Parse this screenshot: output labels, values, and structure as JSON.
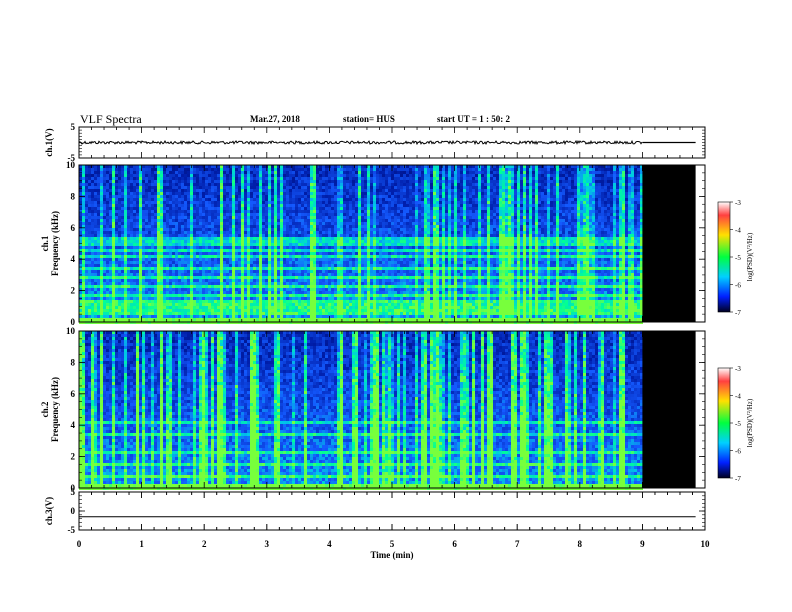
{
  "header": {
    "title": "VLF Spectra",
    "date": "Mar.27, 2018",
    "station": "station= HUS",
    "start": "start  UT  =   1 : 50: 2"
  },
  "chart_data": [
    {
      "type": "line",
      "panel": "ch1-waveform",
      "ylabel": "ch.1(V)",
      "ylim": [
        -5,
        5
      ],
      "yticks": [
        "5",
        "-5"
      ],
      "xlim": [
        0,
        10
      ],
      "data_until_min": 9.0,
      "series": [
        {
          "x": [
            0,
            9.0,
            9.85
          ],
          "y": [
            0.0,
            0.0,
            0.0
          ]
        }
      ]
    },
    {
      "type": "heatmap",
      "panel": "ch1-spectrogram",
      "ylabel": "ch.1\nFrequency (kHz)",
      "ylim": [
        0,
        10
      ],
      "yticks": [
        "0",
        "2",
        "4",
        "6",
        "8",
        "10"
      ],
      "xlim": [
        0,
        10
      ],
      "data_until_min": 9.0,
      "no_data_until_min": 9.85,
      "colorbar": {
        "label": "log(PSD)(V²/Hz)",
        "range": [
          -7,
          -3
        ],
        "ticks": [
          "-3",
          "-4",
          "-5",
          "-6",
          "-7"
        ]
      },
      "bands_khz": [
        0.6,
        0.9,
        1.3,
        1.8,
        2.3,
        3.0,
        3.5,
        4.2,
        4.6,
        5.1,
        5.3
      ]
    },
    {
      "type": "heatmap",
      "panel": "ch2-spectrogram",
      "ylabel": "ch.2\nFrequency (kHz)",
      "ylim": [
        0,
        10
      ],
      "yticks": [
        "0",
        "2",
        "4",
        "6",
        "8",
        "10"
      ],
      "xlim": [
        0,
        10
      ],
      "data_until_min": 9.0,
      "no_data_until_min": 9.85,
      "colorbar": {
        "label": "log(PSD)(V²/Hz)",
        "range": [
          -7,
          -3
        ],
        "ticks": [
          "-3",
          "-4",
          "-5",
          "-6",
          "-7"
        ]
      },
      "bands_khz": [
        0.8,
        1.6,
        2.4,
        3.5,
        4.2
      ]
    },
    {
      "type": "line",
      "panel": "ch3-waveform",
      "ylabel": "ch.3(V)",
      "ylim": [
        -5,
        5
      ],
      "yticks": [
        "5",
        "0",
        "-5"
      ],
      "xlim": [
        0,
        10
      ],
      "xlabel": "Time (min)",
      "xticks": [
        "0",
        "1",
        "2",
        "3",
        "4",
        "5",
        "6",
        "7",
        "8",
        "9",
        "10"
      ],
      "series": [
        {
          "x": [
            0,
            9.85
          ],
          "y": [
            -1.5,
            -1.5
          ]
        }
      ]
    }
  ],
  "colors": {
    "background_low": "#000055",
    "mid": "#1a4cff",
    "high": "#00ff80",
    "no_data": "#000000"
  }
}
